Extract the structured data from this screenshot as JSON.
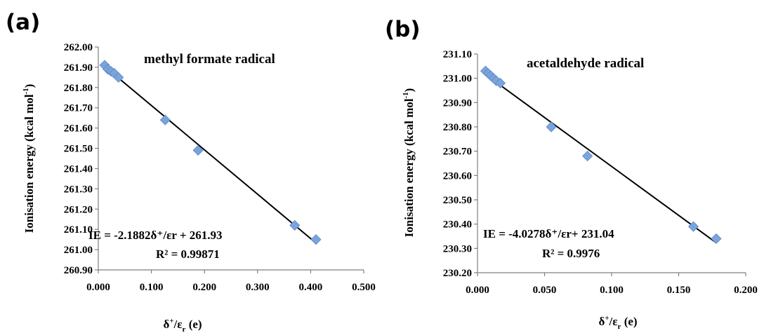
{
  "panels": [
    {
      "letter": "(a)",
      "title": "methyl formate radical",
      "equation": "IE = -2.1882δ⁺/εr  + 261.93",
      "r2": "R² = 0.99871",
      "ylabel": "Ionisation energy (kcal mol-1)",
      "xlabel": "δ+/εr  (e)"
    },
    {
      "letter": "(b)",
      "title": "acetaldehyde radical",
      "equation": "IE = -4.0278δ⁺/εr+ 231.04",
      "r2": "R² = 0.9976",
      "ylabel": "Ionisation energy (kcal mol-1)",
      "xlabel": "δ+/εr   (e)"
    }
  ],
  "chart_data": [
    {
      "type": "scatter",
      "title": "methyl formate radical",
      "xlabel": "δ+/εr (e)",
      "ylabel": "Ionisation energy (kcal mol-1)",
      "xlim": [
        0,
        0.5
      ],
      "ylim": [
        260.9,
        262.0
      ],
      "x_ticks": [
        "0.000",
        "0.100",
        "0.200",
        "0.300",
        "0.400",
        "0.500"
      ],
      "y_ticks": [
        "260.90",
        "261.00",
        "261.10",
        "261.20",
        "261.30",
        "261.40",
        "261.50",
        "261.60",
        "261.70",
        "261.80",
        "261.90",
        "262.00"
      ],
      "grid": false,
      "points": [
        {
          "x": 0.012,
          "y": 261.91
        },
        {
          "x": 0.018,
          "y": 261.89
        },
        {
          "x": 0.024,
          "y": 261.88
        },
        {
          "x": 0.03,
          "y": 261.87
        },
        {
          "x": 0.038,
          "y": 261.85
        },
        {
          "x": 0.126,
          "y": 261.64
        },
        {
          "x": 0.188,
          "y": 261.49
        },
        {
          "x": 0.37,
          "y": 261.12
        },
        {
          "x": 0.41,
          "y": 261.05
        }
      ],
      "trendline": {
        "slope": -2.1882,
        "intercept": 261.93,
        "x_range": [
          0.012,
          0.41
        ]
      },
      "annotations": [
        "IE = -2.1882δ⁺/εr  + 261.93",
        "R² = 0.99871"
      ]
    },
    {
      "type": "scatter",
      "title": "acetaldehyde radical",
      "xlabel": "δ+/εr (e)",
      "ylabel": "Ionisation energy (kcal mol-1)",
      "xlim": [
        0,
        0.2
      ],
      "ylim": [
        230.2,
        231.1
      ],
      "x_ticks": [
        "0.000",
        "0.050",
        "0.100",
        "0.150",
        "0.200"
      ],
      "y_ticks": [
        "230.20",
        "230.30",
        "230.40",
        "230.50",
        "230.60",
        "230.70",
        "230.80",
        "230.90",
        "231.00",
        "231.10"
      ],
      "grid": false,
      "points": [
        {
          "x": 0.006,
          "y": 231.03
        },
        {
          "x": 0.008,
          "y": 231.02
        },
        {
          "x": 0.01,
          "y": 231.01
        },
        {
          "x": 0.012,
          "y": 231.0
        },
        {
          "x": 0.014,
          "y": 230.99
        },
        {
          "x": 0.017,
          "y": 230.98
        },
        {
          "x": 0.055,
          "y": 230.8
        },
        {
          "x": 0.082,
          "y": 230.68
        },
        {
          "x": 0.161,
          "y": 230.39
        },
        {
          "x": 0.178,
          "y": 230.34
        }
      ],
      "trendline": {
        "slope": -4.0278,
        "intercept": 231.04,
        "x_range": [
          0.006,
          0.178
        ]
      },
      "annotations": [
        "IE = -4.0278δ⁺/εr+ 231.04",
        "R² = 0.9976"
      ]
    }
  ]
}
